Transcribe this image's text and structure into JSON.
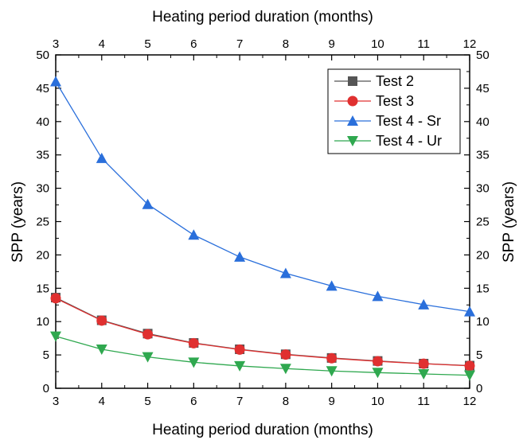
{
  "chart_data": {
    "type": "line",
    "x": [
      3,
      4,
      5,
      6,
      7,
      8,
      9,
      10,
      11,
      12
    ],
    "xlabel_bottom": "Heating period duration (months)",
    "xlabel_top": "Heating period duration (months)",
    "ylabel_left": "SPP (years)",
    "ylabel_right": "SPP (years)",
    "xlim": [
      3,
      12
    ],
    "ylim": [
      0,
      50
    ],
    "xticks": [
      3,
      4,
      5,
      6,
      7,
      8,
      9,
      10,
      11,
      12
    ],
    "yticks": [
      0,
      5,
      10,
      15,
      20,
      25,
      30,
      35,
      40,
      45,
      50
    ],
    "grid": false,
    "legend_position": "top-right",
    "series": [
      {
        "name": "Test 2",
        "color": "#555555",
        "marker": "square",
        "values": [
          13.6,
          10.2,
          8.2,
          6.8,
          5.85,
          5.1,
          4.55,
          4.1,
          3.7,
          3.4
        ]
      },
      {
        "name": "Test 3",
        "color": "#e03030",
        "marker": "circle",
        "values": [
          13.5,
          10.15,
          8.1,
          6.75,
          5.8,
          5.05,
          4.5,
          4.05,
          3.68,
          3.37
        ]
      },
      {
        "name": "Test 4 - Sr",
        "color": "#2a6fdb",
        "marker": "triangle-up",
        "values": [
          46.0,
          34.5,
          27.6,
          23.0,
          19.7,
          17.25,
          15.35,
          13.8,
          12.55,
          11.5
        ]
      },
      {
        "name": "Test 4 - Ur",
        "color": "#2fa84f",
        "marker": "triangle-down",
        "values": [
          7.8,
          5.85,
          4.7,
          3.9,
          3.35,
          2.95,
          2.6,
          2.35,
          2.15,
          1.95
        ]
      }
    ]
  }
}
